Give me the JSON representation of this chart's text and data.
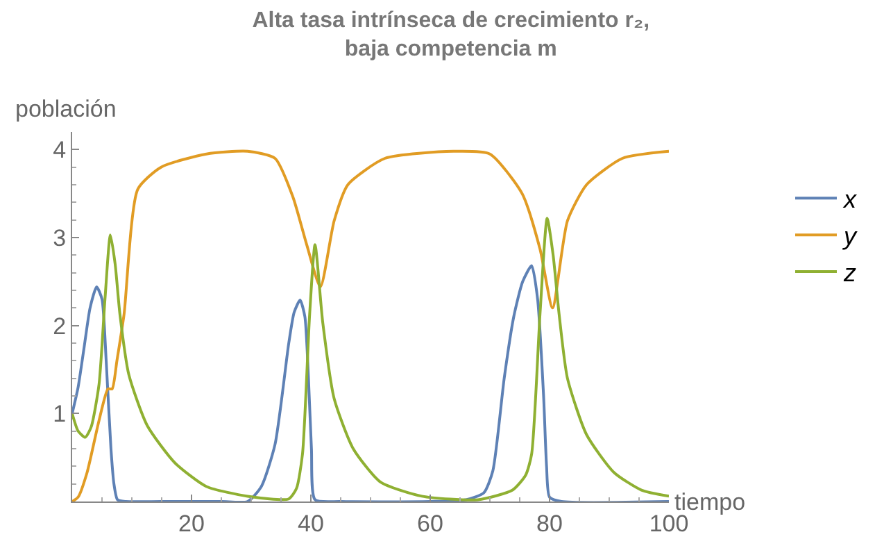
{
  "chart_data": {
    "type": "line",
    "title": "Alta tasa intrínseca de crecimiento r₂,\nbaja competencia m",
    "xlabel": "tiempo",
    "ylabel": "población",
    "xlim": [
      0,
      100
    ],
    "ylim": [
      0,
      4.2
    ],
    "xticks": [
      20,
      40,
      60,
      80,
      100
    ],
    "yticks": [
      1,
      2,
      3,
      4
    ],
    "grid": false,
    "legend": "right",
    "marker": "none",
    "line_style": "solid",
    "series": [
      {
        "name": "x",
        "color": "#5e81b5",
        "x": [
          0,
          1,
          2,
          3,
          4.1,
          5,
          5.7,
          6.5,
          7,
          7.6,
          9,
          15,
          25,
          29.4,
          31.7,
          34,
          36.3,
          37.2,
          38.2,
          39,
          39.6,
          40.1,
          40.7,
          45,
          60,
          66,
          69,
          70.5,
          72.4,
          74,
          75.5,
          77,
          78,
          79,
          79.5,
          80,
          82,
          100
        ],
        "values": [
          1,
          1.3,
          1.75,
          2.2,
          2.44,
          2.3,
          1.6,
          0.6,
          0.2,
          0.02,
          0,
          0,
          0,
          0,
          0.17,
          0.65,
          1.8,
          2.15,
          2.29,
          2.1,
          1.4,
          0.6,
          0.02,
          0,
          0,
          0.02,
          0.1,
          0.35,
          1.4,
          2.1,
          2.5,
          2.68,
          2.3,
          1.2,
          0.4,
          0.05,
          0,
          0
        ]
      },
      {
        "name": "y",
        "color": "#e19c24",
        "x": [
          0,
          1,
          2.5,
          4.5,
          6,
          6.7,
          7.5,
          8.7,
          11,
          14.9,
          22.5,
          29.4,
          34,
          37,
          39.3,
          41.6,
          43.9,
          46.2,
          52.4,
          63.9,
          70,
          75.4,
          78.4,
          80.5,
          83,
          86.2,
          92.2,
          100
        ],
        "values": [
          0,
          0.05,
          0.33,
          0.92,
          1.28,
          1.28,
          1.6,
          2.13,
          3.55,
          3.8,
          3.95,
          3.98,
          3.9,
          3.46,
          2.92,
          2.44,
          3.19,
          3.6,
          3.9,
          3.98,
          3.95,
          3.5,
          2.87,
          2.2,
          3.19,
          3.6,
          3.9,
          3.98
        ]
      },
      {
        "name": "z",
        "color": "#8fb032",
        "x": [
          0,
          1,
          2.2,
          3.2,
          4.5,
          5.5,
          6.4,
          7.2,
          8,
          9.5,
          12.6,
          17.2,
          22.5,
          29.4,
          36.3,
          37.6,
          38.6,
          39.8,
          40.7,
          42,
          43.9,
          47.1,
          51.7,
          58.6,
          68,
          73.8,
          76,
          77,
          78.4,
          79.6,
          80.6,
          81.6,
          83,
          86.2,
          90.8,
          95.4,
          100
        ],
        "values": [
          1,
          0.8,
          0.73,
          0.85,
          1.33,
          2.3,
          3.03,
          2.7,
          2.13,
          1.44,
          0.86,
          0.44,
          0.17,
          0.06,
          0.03,
          0.15,
          0.54,
          2.13,
          2.92,
          2.03,
          1.17,
          0.6,
          0.22,
          0.06,
          0.02,
          0.13,
          0.3,
          0.54,
          2.13,
          3.22,
          2.8,
          2.13,
          1.4,
          0.76,
          0.33,
          0.13,
          0.06
        ]
      }
    ]
  }
}
